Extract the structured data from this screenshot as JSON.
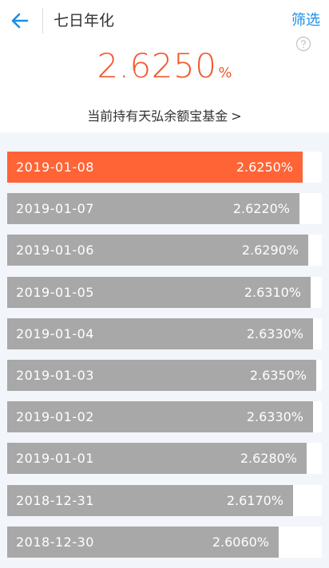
{
  "header": {
    "title": "七日年化",
    "filter_label": "筛选"
  },
  "summary": {
    "value": "2.6250",
    "unit": "%",
    "fund_link": "当前持有天弘余额宝基金",
    "chevron": ">"
  },
  "colors": {
    "accent": "#f05a30",
    "active_bar": "#ff6436",
    "inactive_bar": "#a8a8a8",
    "link": "#1a8fe8"
  },
  "icons": [
    "back-arrow-icon",
    "help-icon"
  ],
  "rows": [
    {
      "date": "2019-01-08",
      "rate": "2.6250%",
      "fill": 0.9797,
      "active": true
    },
    {
      "date": "2019-01-07",
      "rate": "2.6220%",
      "fill": 0.967,
      "active": false
    },
    {
      "date": "2019-01-06",
      "rate": "2.6290%",
      "fill": 0.9975,
      "active": false
    },
    {
      "date": "2019-01-05",
      "rate": "2.6310%",
      "fill": 1.0051,
      "active": false
    },
    {
      "date": "2019-01-04",
      "rate": "2.6330%",
      "fill": 1.0127,
      "active": false
    },
    {
      "date": "2019-01-03",
      "rate": "2.6350%",
      "fill": 1.0228,
      "active": false
    },
    {
      "date": "2019-01-02",
      "rate": "2.6330%",
      "fill": 1.0127,
      "active": false
    },
    {
      "date": "2019-01-01",
      "rate": "2.6280%",
      "fill": 0.9924,
      "active": false
    },
    {
      "date": "2018-12-31",
      "rate": "2.6170%",
      "fill": 0.9467,
      "active": false
    },
    {
      "date": "2018-12-30",
      "rate": "2.6060%",
      "fill": 0.8985,
      "active": false
    }
  ]
}
